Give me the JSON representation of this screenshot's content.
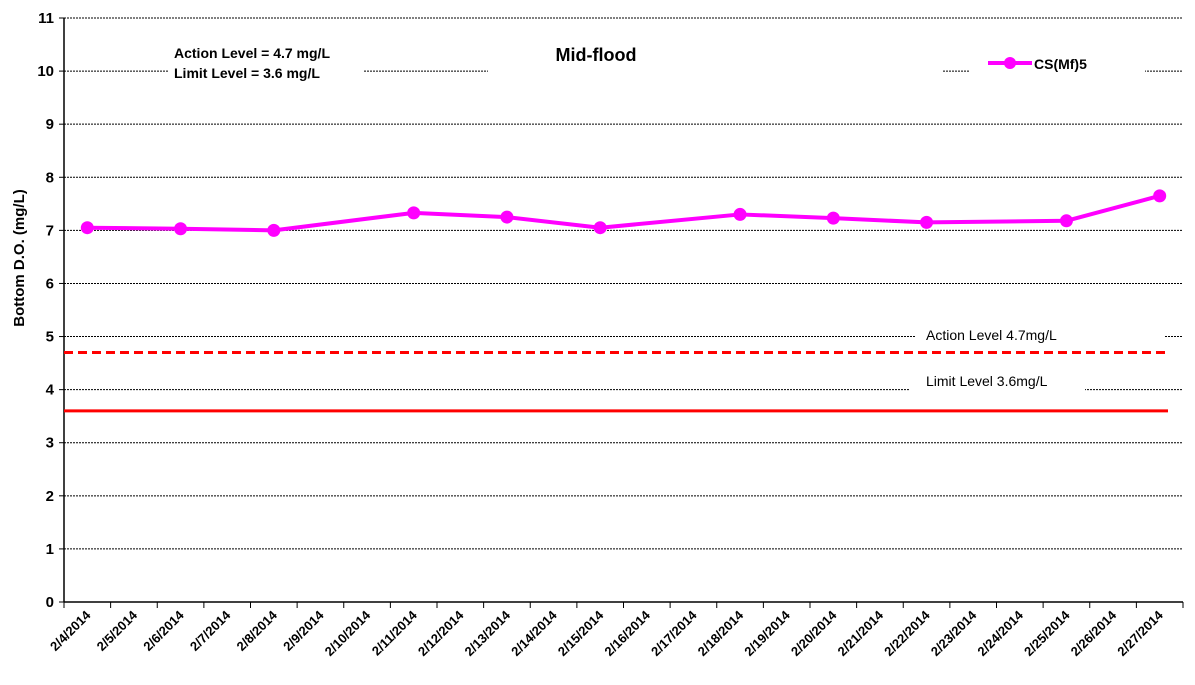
{
  "chart_data": {
    "type": "line",
    "title": "Mid-flood",
    "ylabel": "Bottom D.O. (mg/L)",
    "xlabel": "",
    "ylim": [
      0,
      11
    ],
    "yticks": [
      0,
      1,
      2,
      3,
      4,
      5,
      6,
      7,
      8,
      9,
      10,
      11
    ],
    "grid": true,
    "legend_position": "top-right",
    "categories": [
      "2/4/2014",
      "2/5/2014",
      "2/6/2014",
      "2/7/2014",
      "2/8/2014",
      "2/9/2014",
      "2/10/2014",
      "2/11/2014",
      "2/12/2014",
      "2/13/2014",
      "2/14/2014",
      "2/15/2014",
      "2/16/2014",
      "2/17/2014",
      "2/18/2014",
      "2/19/2014",
      "2/20/2014",
      "2/21/2014",
      "2/22/2014",
      "2/23/2014",
      "2/24/2014",
      "2/25/2014",
      "2/26/2014",
      "2/27/2014"
    ],
    "series": [
      {
        "name": "CS(Mf)5",
        "color": "#ff00ff",
        "x": [
          "2/4/2014",
          "2/6/2014",
          "2/8/2014",
          "2/11/2014",
          "2/13/2014",
          "2/15/2014",
          "2/18/2014",
          "2/20/2014",
          "2/22/2014",
          "2/25/2014",
          "2/27/2014"
        ],
        "values": [
          7.05,
          7.03,
          7.0,
          7.33,
          7.25,
          7.05,
          7.3,
          7.23,
          7.15,
          7.18,
          7.65
        ]
      }
    ],
    "reference_lines": [
      {
        "label": "Action Level 4.7mg/L",
        "value": 4.7,
        "style": "dashed",
        "color": "#ff0000"
      },
      {
        "label": "Limit Level 3.6mg/L",
        "value": 3.6,
        "style": "solid",
        "color": "#ff0000"
      }
    ],
    "annotation": {
      "action_text": "Action Level = 4.7 mg/L",
      "limit_text": "Limit Level = 3.6 mg/L"
    }
  }
}
